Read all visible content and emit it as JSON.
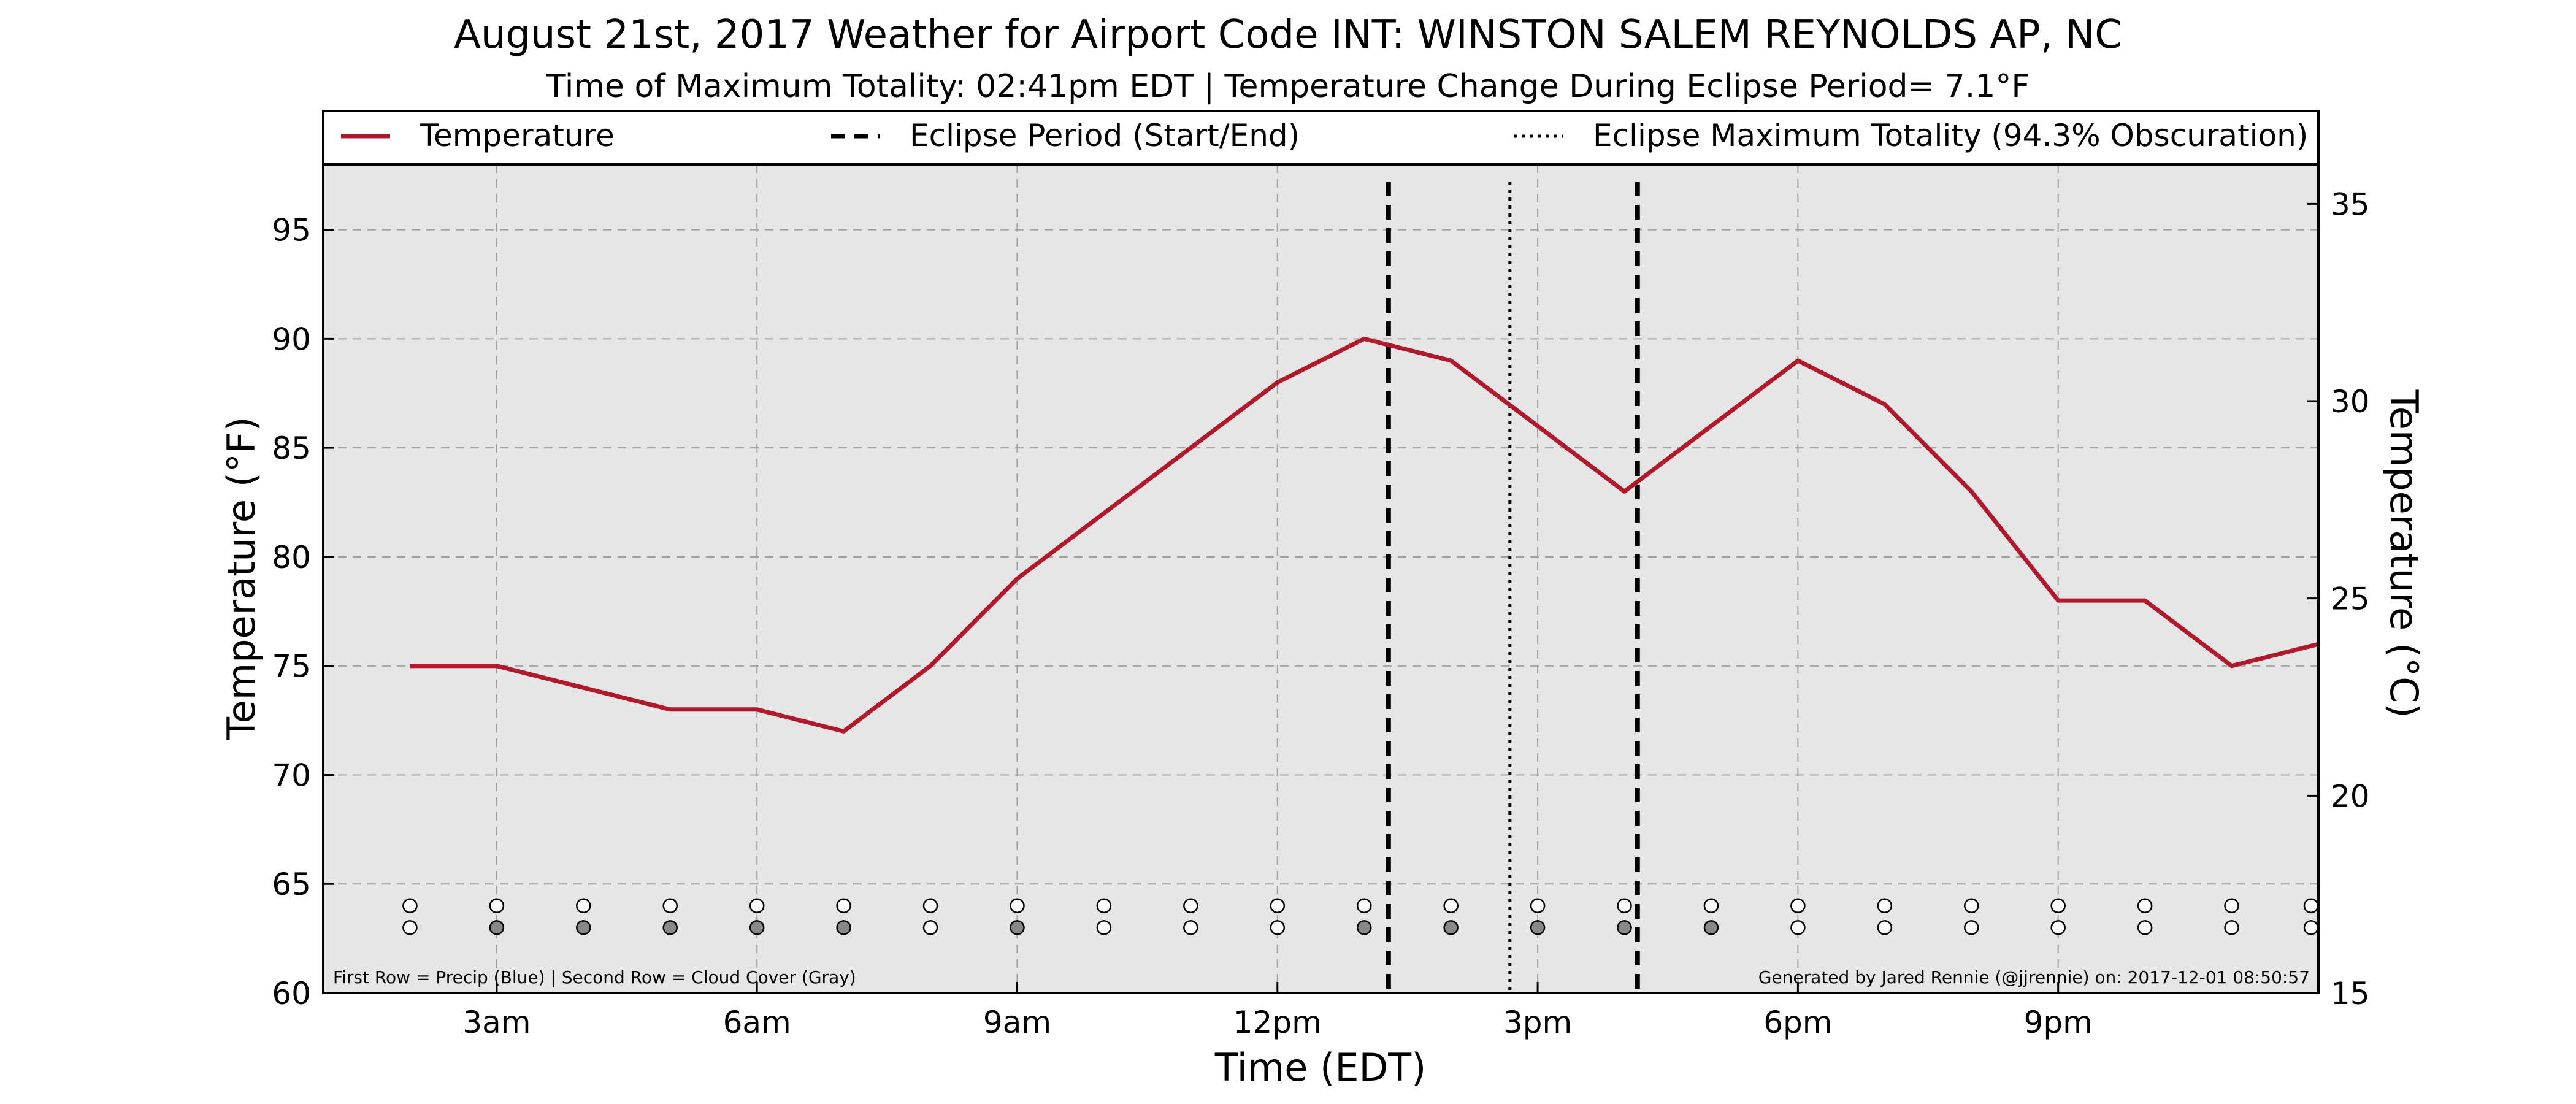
{
  "chart_data": {
    "type": "line",
    "title": "August 21st, 2017 Weather for Airport Code INT: WINSTON SALEM REYNOLDS AP, NC",
    "subtitle": "Time of Maximum Totality: 02:41pm EDT | Temperature Change During Eclipse Period= 7.1°F",
    "xlabel": "Time (EDT)",
    "ylabel_left": "Temperature (°F)",
    "ylabel_right": "Temperature (°C)",
    "ylim_f": [
      60,
      98
    ],
    "ylim_c": [
      15,
      36
    ],
    "y_ticks_f": [
      60,
      65,
      70,
      75,
      80,
      85,
      90,
      95
    ],
    "y_ticks_c": [
      15,
      20,
      25,
      30,
      35
    ],
    "xlim_hours": [
      1,
      24
    ],
    "x_ticks": [
      {
        "hour": 3,
        "label": "3am"
      },
      {
        "hour": 6,
        "label": "6am"
      },
      {
        "hour": 9,
        "label": "9am"
      },
      {
        "hour": 12,
        "label": "12pm"
      },
      {
        "hour": 15,
        "label": "3pm"
      },
      {
        "hour": 18,
        "label": "6pm"
      },
      {
        "hour": 21,
        "label": "9pm"
      }
    ],
    "grid": true,
    "legend_placement": "top",
    "legend": {
      "temperature": "Temperature",
      "eclipse_period": "Eclipse Period (Start/End)",
      "max_totality": "Eclipse Maximum Totality (94.3% Obscuration)"
    },
    "series": [
      {
        "name": "Temperature",
        "color": "#b2182b",
        "x": [
          2,
          3,
          4,
          5,
          6,
          7,
          8,
          9,
          10,
          11,
          12,
          13,
          14,
          15,
          16,
          17,
          18,
          19,
          20,
          21,
          22,
          23,
          24
        ],
        "values": [
          75,
          75,
          74,
          73,
          73,
          72,
          75,
          79,
          82,
          85,
          88,
          90,
          89,
          86,
          83,
          86,
          89,
          87,
          83,
          78,
          78,
          75,
          76
        ]
      }
    ],
    "eclipse_start_hour": 13.28,
    "eclipse_end_hour": 16.15,
    "max_totality_hour": 14.68,
    "precip_row": [
      "white",
      "white",
      "white",
      "white",
      "white",
      "white",
      "white",
      "white",
      "white",
      "white",
      "white",
      "white",
      "white",
      "white",
      "white",
      "white",
      "white",
      "white",
      "white",
      "white",
      "white",
      "white",
      "white"
    ],
    "cloud_row": [
      "white",
      "gray",
      "gray",
      "gray",
      "gray",
      "gray",
      "white",
      "gray",
      "white",
      "white",
      "white",
      "gray",
      "gray",
      "gray",
      "gray",
      "gray",
      "white",
      "white",
      "white",
      "white",
      "white",
      "white",
      "white"
    ],
    "footnote_left": "First Row = Precip (Blue) | Second Row = Cloud Cover (Gray)",
    "footnote_right": "Generated by Jared Rennie (@jjrennie) on: 2017-12-01 08:50:57",
    "colors": {
      "plot_background": "#e6e6e6",
      "line": "#b2182b",
      "grid": "#a0a0a0",
      "cloud_gray": "#888888"
    }
  }
}
